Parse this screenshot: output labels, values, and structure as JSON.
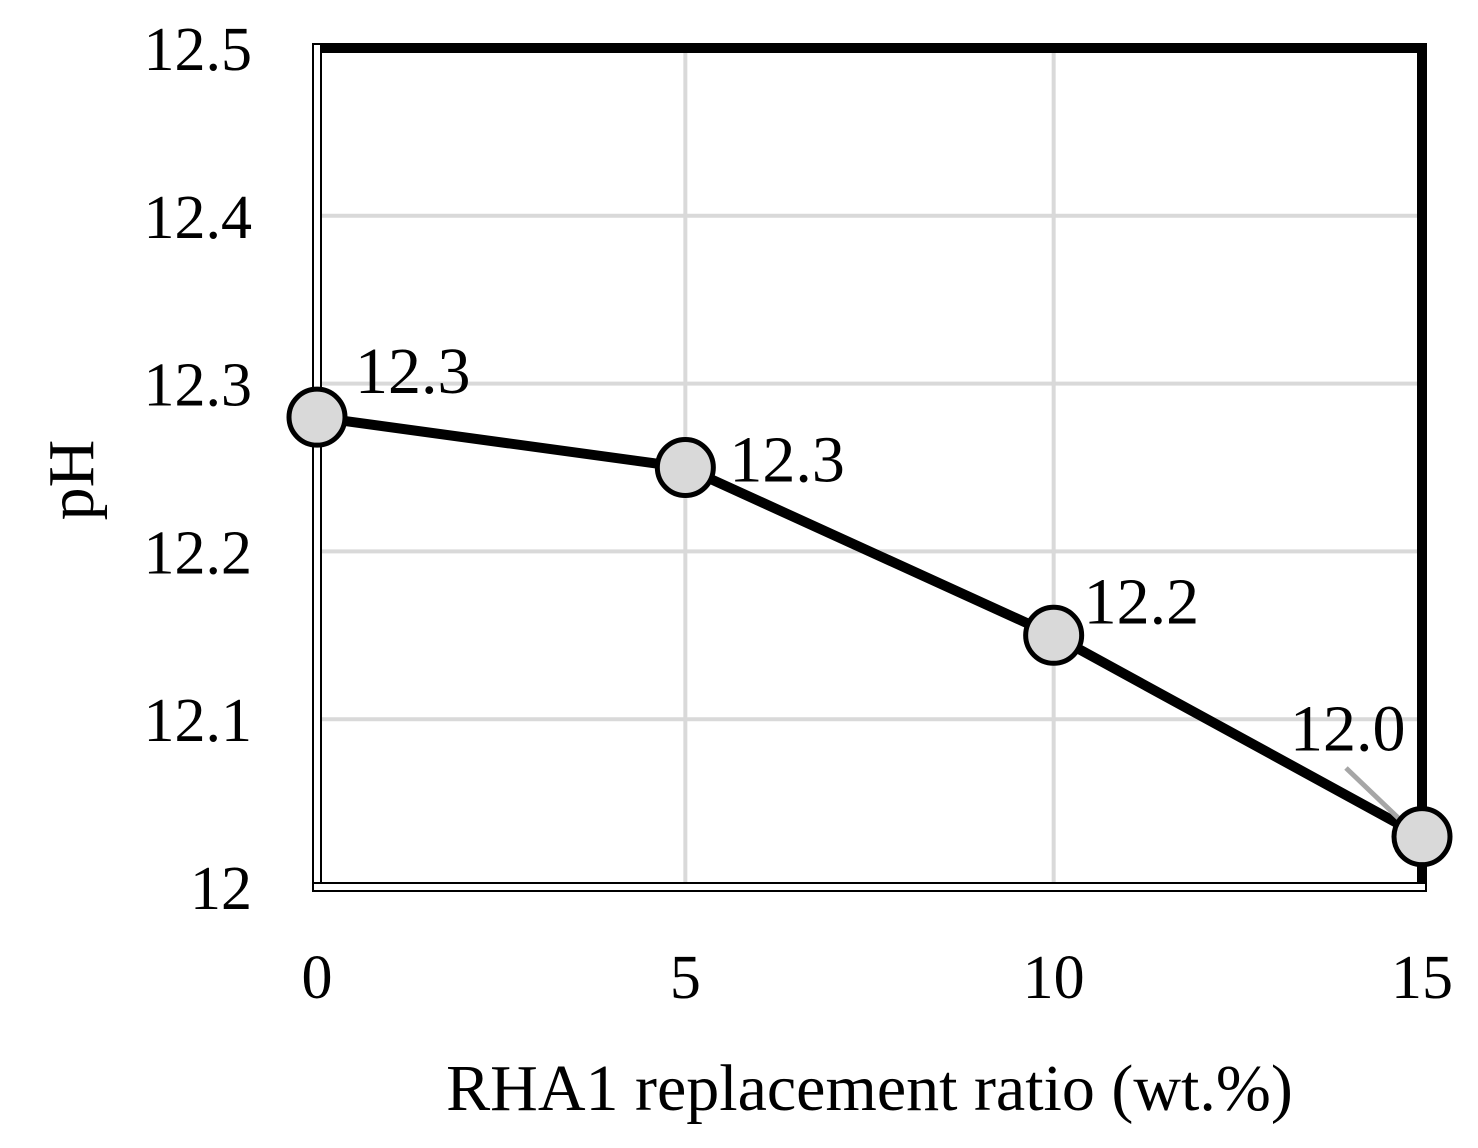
{
  "chart_data": {
    "type": "line",
    "title": "",
    "xlabel": "RHA1 replacement ratio (wt.%)",
    "ylabel": "pH",
    "x": [
      0,
      5,
      10,
      15
    ],
    "series": [
      {
        "values": [
          12.28,
          12.25,
          12.15,
          12.03
        ],
        "data_labels": [
          "12.3",
          "12.3",
          "12.2",
          "12.0"
        ]
      }
    ],
    "xlim": [
      0,
      15
    ],
    "ylim": [
      12,
      12.5
    ],
    "xticks": [
      0,
      5,
      10,
      15
    ],
    "xtick_labels": [
      "0",
      "5",
      "10",
      "15"
    ],
    "yticks": [
      12,
      12.1,
      12.2,
      12.3,
      12.4,
      12.5
    ],
    "ytick_labels": [
      "12",
      "12.1",
      "12.2",
      "12.3",
      "12.4",
      "12.5"
    ],
    "grid": true,
    "legend": "none",
    "colors": {
      "line": "#000000",
      "marker_fill": "#d9d9d9",
      "marker_edge": "#000000",
      "grid": "#d9d9d9",
      "leader_line": "#a6a6a6"
    }
  }
}
